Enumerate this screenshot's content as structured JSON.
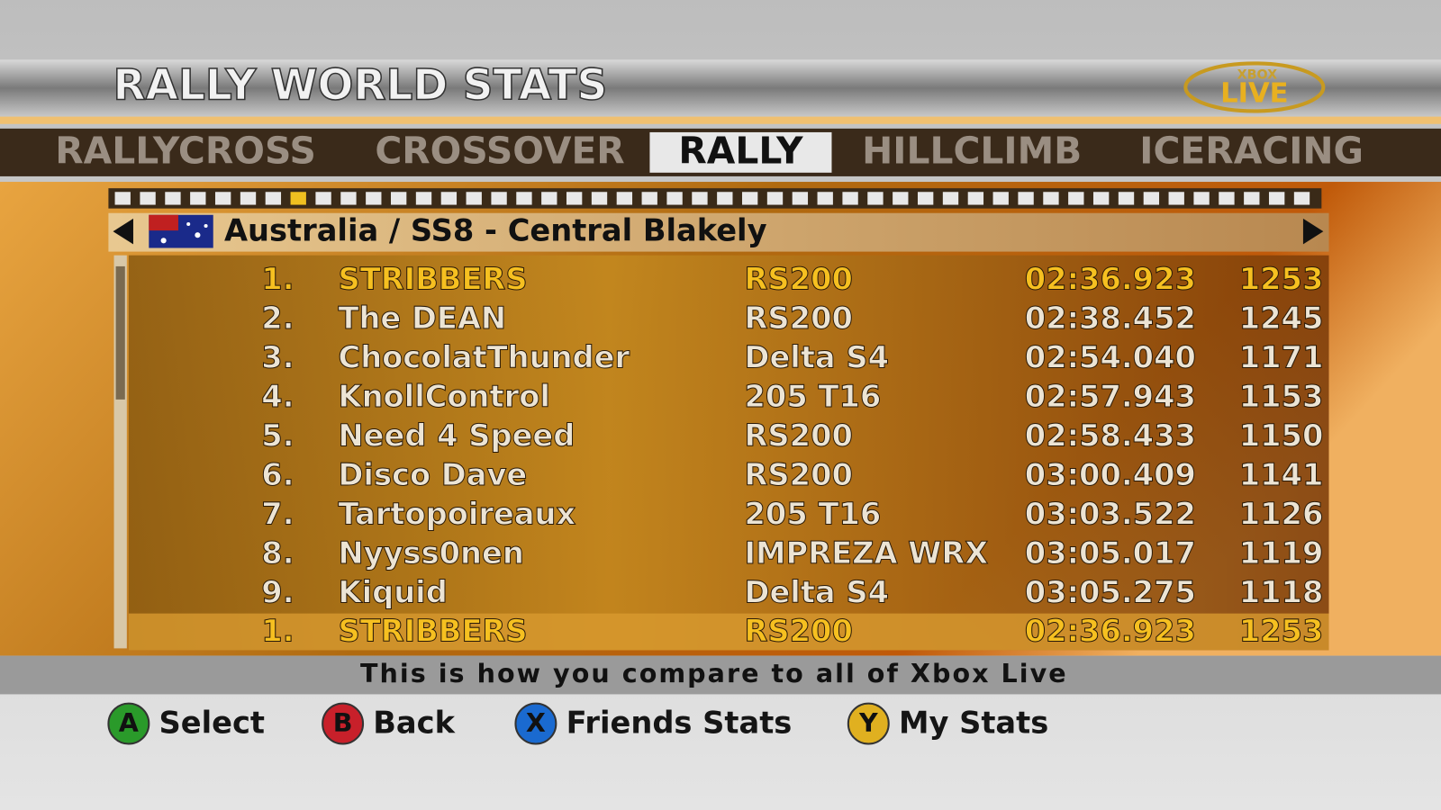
{
  "header": {
    "title": "RALLY WORLD STATS",
    "logo": {
      "top": "XBOX",
      "bottom": "LIVE"
    }
  },
  "tabs": [
    "RALLYCROSS",
    "CROSSOVER",
    "RALLY",
    "HILLCLIMB",
    "ICERACING"
  ],
  "selected_tab": 2,
  "stage": "Australia / SS8 - Central Blakely",
  "table": {
    "rows": [
      [
        "1.",
        "STRIBBERS",
        "RS200",
        "02:36.923",
        "1253"
      ],
      [
        "2.",
        "The DEAN",
        "RS200",
        "02:38.452",
        "1245"
      ],
      [
        "3.",
        "ChocolatThunder",
        "Delta S4",
        "02:54.040",
        "1171"
      ],
      [
        "4.",
        "KnollControl",
        "205 T16",
        "02:57.943",
        "1153"
      ],
      [
        "5.",
        "Need 4 Speed",
        "RS200",
        "02:58.433",
        "1150"
      ],
      [
        "6.",
        "Disco Dave",
        "RS200",
        "03:00.409",
        "1141"
      ],
      [
        "7.",
        "Tartopoireaux",
        "205 T16",
        "03:03.522",
        "1126"
      ],
      [
        "8.",
        "Nyyss0nen",
        "IMPREZA WRX",
        "03:05.017",
        "1119"
      ],
      [
        "9.",
        "Kiquid",
        "Delta S4",
        "03:05.275",
        "1118"
      ]
    ],
    "player_row": [
      "1.",
      "STRIBBERS",
      "RS200",
      "02:36.923",
      "1253"
    ],
    "highlight_rows": [
      0
    ]
  },
  "footer": {
    "message": "This is how you compare to all of Xbox Live",
    "buttons": [
      {
        "key": "A",
        "label": "Select",
        "color": "#2a9a2a"
      },
      {
        "key": "B",
        "label": "Back",
        "color": "#c8202a"
      },
      {
        "key": "X",
        "label": "Friends Stats",
        "color": "#1a6ad0"
      },
      {
        "key": "Y",
        "label": "My Stats",
        "color": "#e0b020"
      }
    ]
  }
}
